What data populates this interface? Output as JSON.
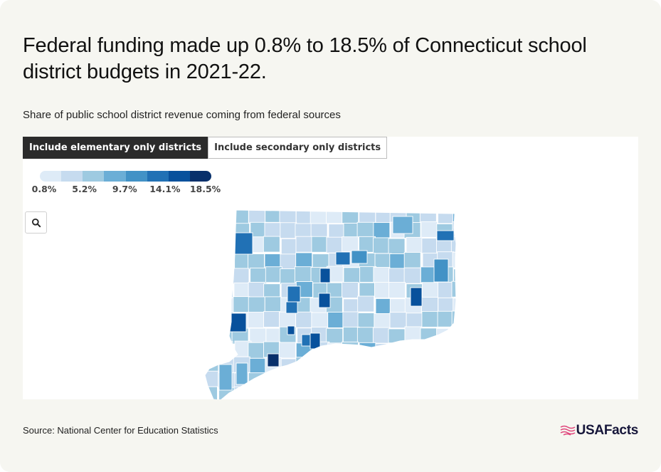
{
  "title": "Federal funding made up 0.8% to 18.5% of Connecticut school district budgets in 2021-22.",
  "subtitle": "Share of public school district revenue coming from federal sources",
  "tabs": [
    {
      "label": "Include elementary only districts",
      "active": true
    },
    {
      "label": "Include secondary only districts",
      "active": false
    }
  ],
  "legend": {
    "colors": [
      "#deebf7",
      "#c6dbef",
      "#9ecae1",
      "#6baed6",
      "#4292c6",
      "#2171b5",
      "#08519c",
      "#08306b"
    ],
    "labels": [
      "0.8%",
      "5.2%",
      "9.7%",
      "14.1%",
      "18.5%"
    ]
  },
  "zoom_icon": "search-icon",
  "map": {
    "region": "Connecticut school districts",
    "high_color": "#1d2f6f",
    "default_color": "#c6dbef"
  },
  "source": "Source: National Center for Education Statistics",
  "brand": {
    "name": "USAFacts",
    "accent": "#e0457b"
  }
}
